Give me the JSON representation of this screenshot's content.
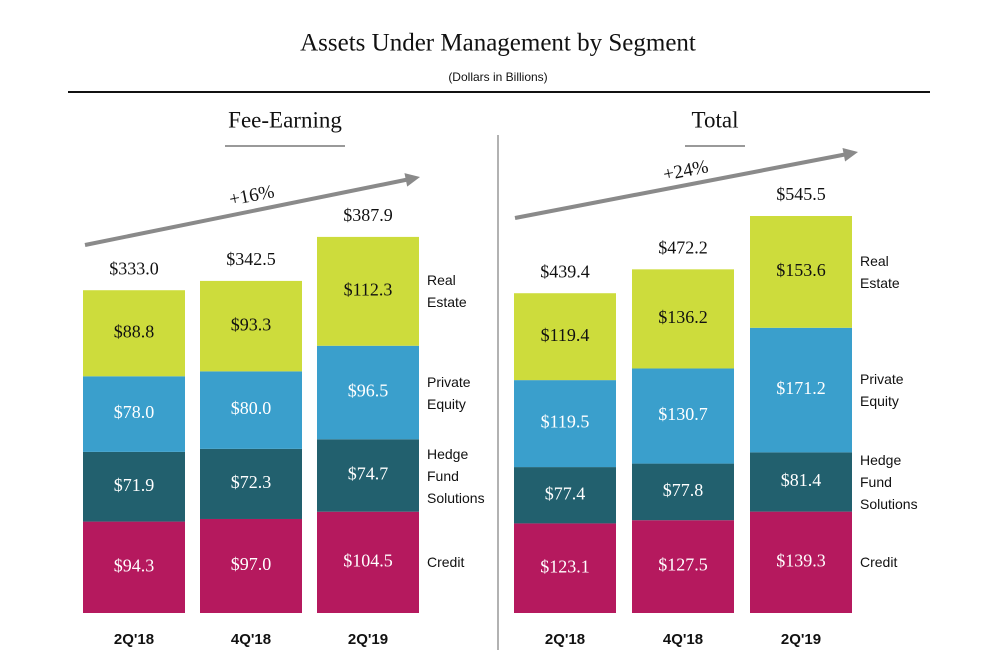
{
  "title": "Assets Under Management by Segment",
  "subtitle": "(Dollars in Billions)",
  "chart_data": [
    {
      "type": "stacked-bar",
      "title": "Fee-Earning",
      "annotation": "+16%",
      "categories": [
        "2Q'18",
        "4Q'18",
        "2Q'19"
      ],
      "series": [
        {
          "name": "Credit",
          "color": "#b5195e",
          "values": [
            94.3,
            97.0,
            104.5
          ],
          "value_labels": [
            "$94.3",
            "$97.0",
            "$104.5"
          ]
        },
        {
          "name": "Hedge Fund Solutions",
          "color": "#22606e",
          "values": [
            71.9,
            72.3,
            74.7
          ],
          "value_labels": [
            "$71.9",
            "$72.3",
            "$74.7"
          ]
        },
        {
          "name": "Private Equity",
          "color": "#3a9fcc",
          "values": [
            78.0,
            80.0,
            96.5
          ],
          "value_labels": [
            "$78.0",
            "$80.0",
            "$96.5"
          ]
        },
        {
          "name": "Real Estate",
          "color": "#cddc3c",
          "values": [
            88.8,
            93.3,
            112.3
          ],
          "value_labels": [
            "$88.8",
            "$93.3",
            "$112.3"
          ]
        }
      ],
      "totals": [
        333.0,
        342.5,
        387.9
      ],
      "total_labels": [
        "$333.0",
        "$342.5",
        "$387.9"
      ]
    },
    {
      "type": "stacked-bar",
      "title": "Total",
      "annotation": "+24%",
      "categories": [
        "2Q'18",
        "4Q'18",
        "2Q'19"
      ],
      "series": [
        {
          "name": "Credit",
          "color": "#b5195e",
          "values": [
            123.1,
            127.5,
            139.3
          ],
          "value_labels": [
            "$123.1",
            "$127.5",
            "$139.3"
          ]
        },
        {
          "name": "Hedge Fund Solutions",
          "color": "#22606e",
          "values": [
            77.4,
            77.8,
            81.4
          ],
          "value_labels": [
            "$77.4",
            "$77.8",
            "$81.4"
          ]
        },
        {
          "name": "Private Equity",
          "color": "#3a9fcc",
          "values": [
            119.5,
            130.7,
            171.2
          ],
          "value_labels": [
            "$119.5",
            "$130.7",
            "$171.2"
          ]
        },
        {
          "name": "Real Estate",
          "color": "#cddc3c",
          "values": [
            119.4,
            136.2,
            153.6
          ],
          "value_labels": [
            "$119.4",
            "$136.2",
            "$153.6"
          ]
        }
      ],
      "totals": [
        439.4,
        472.2,
        545.5
      ],
      "total_labels": [
        "$439.4",
        "$472.2",
        "$545.5"
      ]
    }
  ]
}
